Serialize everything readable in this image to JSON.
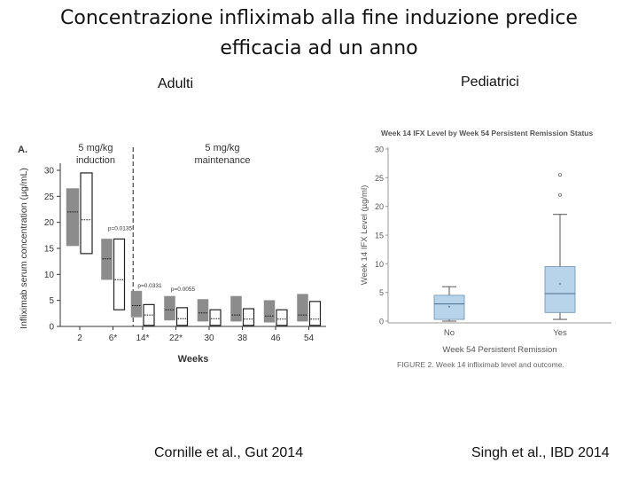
{
  "slide": {
    "title_line1": "Concentrazione infliximab alla fine induzione predice",
    "title_line2": "efficacia ad un anno",
    "label_left": "Adulti",
    "label_right": "Pediatrici",
    "citation_left": "Cornille et al., Gut 2014",
    "citation_right": "Singh et al., IBD 2014"
  },
  "chart_data": [
    {
      "type": "bar",
      "panel_label": "A.",
      "ylabel": "Infliximab serum concentration (µg/mL)",
      "xlabel": "Weeks",
      "ylim": [
        0,
        30
      ],
      "yticks": [
        0,
        5,
        10,
        15,
        20,
        25,
        30
      ],
      "categories": [
        "2",
        "6*",
        "14*",
        "22*",
        "30",
        "38",
        "46",
        "54"
      ],
      "phase_labels": [
        "5 mg/kg induction",
        "5 mg/kg maintenance"
      ],
      "series": [
        {
          "color": "#8c8c8c",
          "low": [
            15.5,
            9.0,
            1.8,
            1.2,
            1.0,
            1.0,
            0.8,
            1.0
          ],
          "high": [
            26.5,
            16.8,
            6.8,
            5.8,
            5.2,
            5.8,
            5.0,
            6.2
          ],
          "median": [
            22.0,
            13.0,
            4.0,
            3.2,
            2.6,
            2.2,
            2.0,
            2.2
          ]
        },
        {
          "color": "#ffffff",
          "low": [
            14.0,
            3.2,
            0.2,
            0.2,
            0.2,
            0.2,
            0.2,
            0.2
          ],
          "high": [
            29.5,
            16.8,
            4.2,
            3.6,
            3.2,
            3.4,
            3.2,
            4.8
          ],
          "median": [
            20.5,
            9.0,
            2.2,
            1.5,
            1.5,
            1.4,
            1.4,
            1.4
          ]
        }
      ],
      "annotations": [
        {
          "category": "6*",
          "text": "p=0.0135",
          "y": 18.5
        },
        {
          "category": "14*",
          "text": "p=0.0331",
          "y": 7.5
        },
        {
          "category": "22*",
          "text": "p=0.0055",
          "y": 6.8
        }
      ]
    },
    {
      "type": "box",
      "title": "Week 14 IFX Level by Week 54 Persistent Remission Status",
      "ylabel": "Week 14 IFX Level (µg/ml)",
      "xlabel": "Week 54 Persistent Remission",
      "ylim": [
        0,
        30
      ],
      "yticks": [
        0,
        5,
        10,
        15,
        20,
        25,
        30
      ],
      "categories": [
        "No",
        "Yes"
      ],
      "boxes": [
        {
          "whisker_low": 0.0,
          "q1": 0.3,
          "median": 3.0,
          "q3": 4.5,
          "whisker_high": 6.0,
          "mean": 2.5,
          "outliers": []
        },
        {
          "whisker_low": 0.3,
          "q1": 1.5,
          "median": 4.8,
          "q3": 9.5,
          "whisker_high": 18.6,
          "mean": 6.5,
          "outliers": [
            25.5,
            22.0
          ]
        }
      ],
      "box_color": "#b8d4ea",
      "figure_caption": "FIGURE 2.  Week 14 infliximab level and outcome."
    }
  ]
}
